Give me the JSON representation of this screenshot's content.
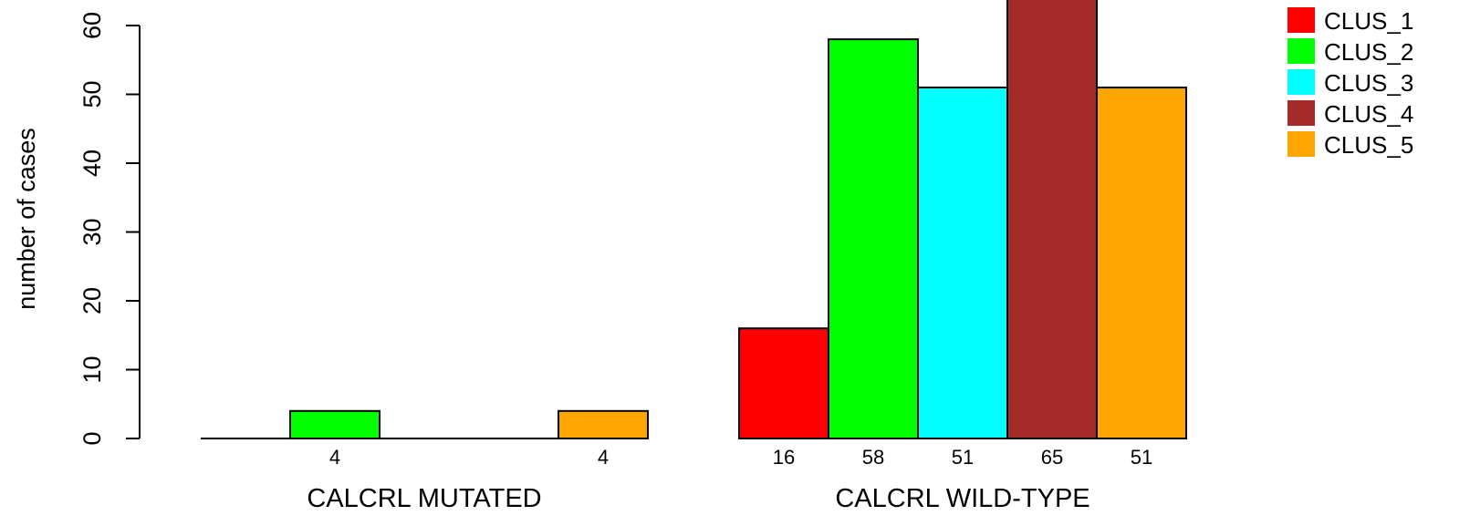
{
  "chart_data": {
    "type": "bar",
    "title": "",
    "xlabel": "",
    "ylabel": "number of cases",
    "ylim": [
      0,
      65
    ],
    "yticks": [
      0,
      10,
      20,
      30,
      40,
      50,
      60
    ],
    "grid": false,
    "legend_position": "top-right",
    "groups": [
      {
        "label": "CALCRL MUTATED",
        "values": [
          0,
          4,
          0,
          0,
          4
        ],
        "value_labels": [
          "",
          "4",
          "",
          "",
          "4"
        ]
      },
      {
        "label": "CALCRL WILD-TYPE",
        "values": [
          16,
          58,
          51,
          65,
          51
        ],
        "value_labels": [
          "16",
          "58",
          "51",
          "65",
          "51"
        ]
      }
    ],
    "series": [
      {
        "name": "CLUS_1",
        "color": "#ff0000"
      },
      {
        "name": "CLUS_2",
        "color": "#00ff00"
      },
      {
        "name": "CLUS_3",
        "color": "#00ffff"
      },
      {
        "name": "CLUS_4",
        "color": "#a52a2a"
      },
      {
        "name": "CLUS_5",
        "color": "#ffa500"
      }
    ]
  }
}
